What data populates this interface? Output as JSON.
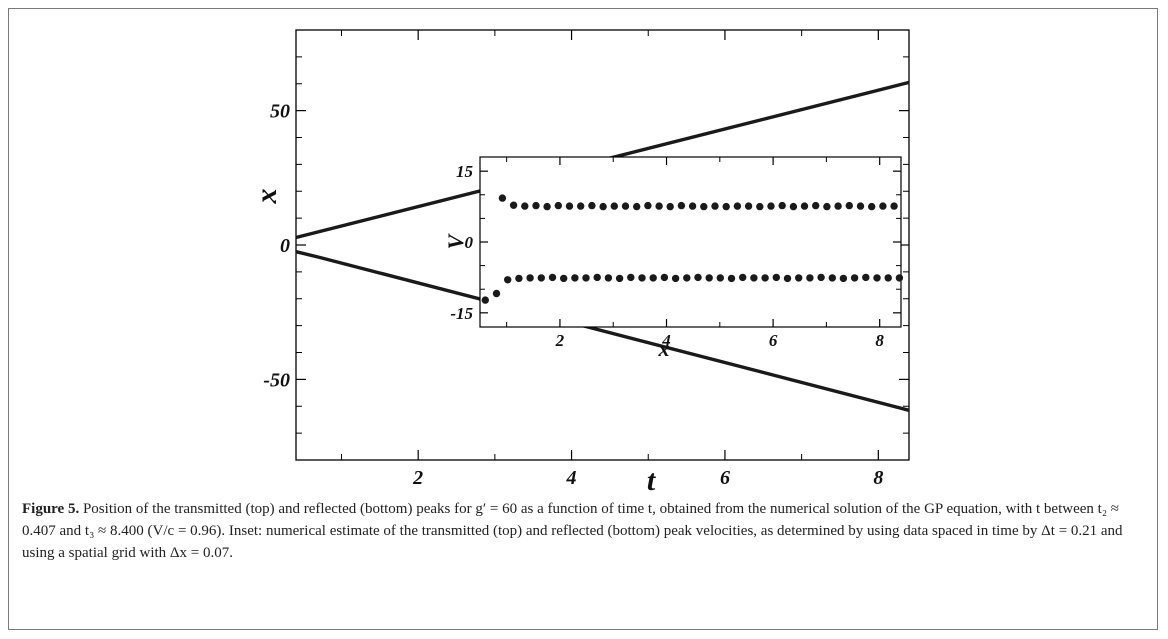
{
  "chart_data": [
    {
      "type": "line",
      "title": "",
      "xlabel": "t",
      "ylabel": "x",
      "xlim": [
        0.407,
        8.4
      ],
      "ylim": [
        -80,
        80
      ],
      "xticks": [
        2,
        4,
        6,
        8
      ],
      "yticks": [
        50,
        0,
        -50
      ],
      "xtick_labels": [
        "2",
        "4",
        "6",
        "8"
      ],
      "ytick_labels": [
        "50",
        "0",
        "-50"
      ],
      "grid": false,
      "legend": "none",
      "series": [
        {
          "color": "#1a1a1a",
          "x": [
            0.407,
            8.4
          ],
          "y": [
            2.8,
            60.5
          ]
        },
        {
          "color": "#1a1a1a",
          "x": [
            0.407,
            0.7,
            8.4
          ],
          "y": [
            -2.5,
            -4.5,
            -61.5
          ]
        }
      ]
    },
    {
      "type": "scatter",
      "title": "",
      "xlabel": "x",
      "ylabel": "V",
      "xlim": [
        0.5,
        8.4
      ],
      "ylim": [
        -18,
        18
      ],
      "xticks": [
        2,
        4,
        6,
        8
      ],
      "yticks": [
        15,
        0,
        -15
      ],
      "xtick_labels": [
        "2",
        "4",
        "6",
        "8"
      ],
      "ytick_labels": [
        "15",
        "0",
        "-15"
      ],
      "grid": false,
      "legend": "none",
      "series": [
        {
          "color": "#1a1a1a",
          "x": [
            0.92,
            1.13,
            1.34,
            1.55,
            1.76,
            1.97,
            2.18,
            2.39,
            2.6,
            2.81,
            3.02,
            3.23,
            3.44,
            3.65,
            3.86,
            4.07,
            4.28,
            4.49,
            4.7,
            4.91,
            5.12,
            5.33,
            5.54,
            5.75,
            5.96,
            6.17,
            6.38,
            6.59,
            6.8,
            7.01,
            7.22,
            7.43,
            7.64,
            7.85,
            8.06,
            8.27
          ],
          "y": [
            9.3,
            7.8,
            7.6,
            7.7,
            7.5,
            7.7,
            7.6,
            7.6,
            7.7,
            7.5,
            7.6,
            7.6,
            7.5,
            7.7,
            7.6,
            7.5,
            7.7,
            7.6,
            7.5,
            7.6,
            7.5,
            7.6,
            7.6,
            7.5,
            7.6,
            7.7,
            7.5,
            7.6,
            7.7,
            7.5,
            7.6,
            7.7,
            7.6,
            7.5,
            7.6,
            7.6
          ]
        },
        {
          "color": "#1a1a1a",
          "x": [
            0.6,
            0.81,
            1.02,
            1.23,
            1.44,
            1.65,
            1.86,
            2.07,
            2.28,
            2.49,
            2.7,
            2.91,
            3.12,
            3.33,
            3.54,
            3.75,
            3.96,
            4.17,
            4.38,
            4.59,
            4.8,
            5.01,
            5.22,
            5.43,
            5.64,
            5.85,
            6.06,
            6.27,
            6.48,
            6.69,
            6.9,
            7.11,
            7.32,
            7.53,
            7.74,
            7.95,
            8.16,
            8.37
          ],
          "y": [
            -12.3,
            -10.9,
            -8.0,
            -7.7,
            -7.6,
            -7.6,
            -7.5,
            -7.7,
            -7.6,
            -7.6,
            -7.5,
            -7.6,
            -7.7,
            -7.5,
            -7.6,
            -7.6,
            -7.5,
            -7.7,
            -7.6,
            -7.5,
            -7.6,
            -7.6,
            -7.7,
            -7.5,
            -7.6,
            -7.6,
            -7.5,
            -7.7,
            -7.6,
            -7.6,
            -7.5,
            -7.6,
            -7.7,
            -7.6,
            -7.5,
            -7.6,
            -7.6,
            -7.6
          ]
        }
      ]
    }
  ],
  "caption": {
    "label": "Figure 5.",
    "text": " Position of the transmitted (top) and reflected (bottom) peaks for g′ = 60 as a function of time t, obtained from the numerical solution of the GP equation, with t between t₂ ≈ 0.407 and t₃ ≈ 8.400 (V/c = 0.96). Inset: numerical estimate of the transmitted (top) and reflected (bottom) peak velocities, as determined by using data spaced in time by Δt = 0.21 and using a spatial grid with Δx = 0.07."
  }
}
